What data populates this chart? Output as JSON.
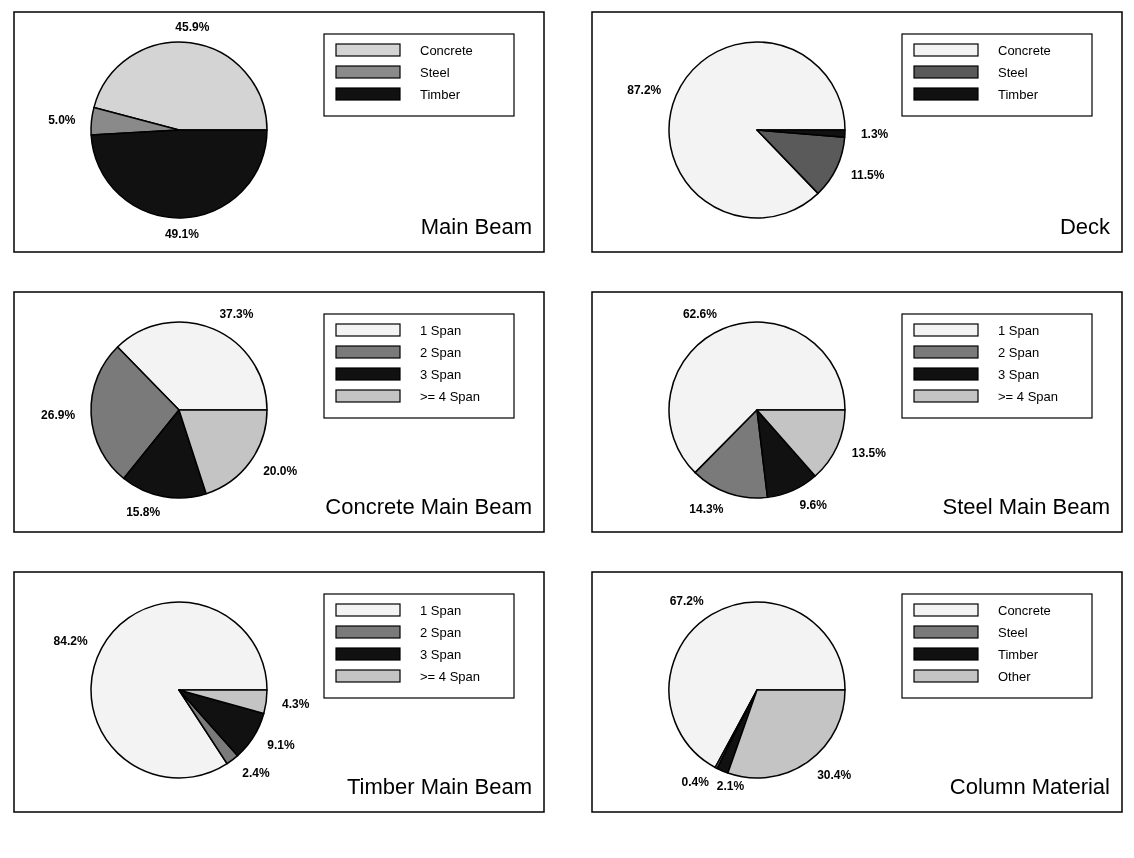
{
  "chart_data": [
    {
      "type": "pie",
      "title": "Main Beam",
      "categories": [
        "Concrete",
        "Steel",
        "Timber"
      ],
      "values": [
        45.9,
        5.0,
        49.1
      ],
      "value_labels": [
        "45.9%",
        "5.0%",
        "49.1%"
      ],
      "colors": [
        "#d4d4d4",
        "#8a8a8a",
        "#111111"
      ],
      "legend": "top right"
    },
    {
      "type": "pie",
      "title": "Deck",
      "categories": [
        "Concrete",
        "Steel",
        "Timber"
      ],
      "values": [
        87.2,
        11.5,
        1.3
      ],
      "value_labels": [
        "87.2%",
        "11.5%",
        "1.3%"
      ],
      "colors": [
        "#f3f3f3",
        "#5a5a5a",
        "#111111"
      ],
      "legend": "top right"
    },
    {
      "type": "pie",
      "title": "Concrete Main Beam",
      "categories": [
        "1 Span",
        "2 Span",
        "3 Span",
        ">= 4 Span"
      ],
      "values": [
        37.3,
        26.9,
        15.8,
        20.0
      ],
      "value_labels": [
        "37.3%",
        "26.9%",
        "15.8%",
        "20.0%"
      ],
      "colors": [
        "#f3f3f3",
        "#7a7a7a",
        "#111111",
        "#c4c4c4"
      ],
      "legend": "top right"
    },
    {
      "type": "pie",
      "title": "Steel Main Beam",
      "categories": [
        "1 Span",
        "2 Span",
        "3 Span",
        ">= 4 Span"
      ],
      "values": [
        62.6,
        14.3,
        9.6,
        13.5
      ],
      "value_labels": [
        "62.6%",
        "14.3%",
        "9.6%",
        "13.5%"
      ],
      "colors": [
        "#f3f3f3",
        "#7a7a7a",
        "#111111",
        "#c4c4c4"
      ],
      "legend": "top right"
    },
    {
      "type": "pie",
      "title": "Timber Main Beam",
      "categories": [
        "1 Span",
        "2 Span",
        "3 Span",
        ">= 4 Span"
      ],
      "values": [
        84.2,
        2.4,
        9.1,
        4.3
      ],
      "value_labels": [
        "84.2%",
        "2.4%",
        "9.1%",
        "4.3%"
      ],
      "colors": [
        "#f3f3f3",
        "#7a7a7a",
        "#111111",
        "#c4c4c4"
      ],
      "legend": "top right"
    },
    {
      "type": "pie",
      "title": "Column Material",
      "categories": [
        "Concrete",
        "Steel",
        "Timber",
        "Other"
      ],
      "values": [
        67.2,
        0.4,
        2.1,
        30.4
      ],
      "value_labels": [
        "67.2%",
        "0.4%",
        "2.1%",
        "30.4%"
      ],
      "colors": [
        "#f3f3f3",
        "#7a7a7a",
        "#111111",
        "#c4c4c4"
      ],
      "legend": "top right"
    }
  ]
}
